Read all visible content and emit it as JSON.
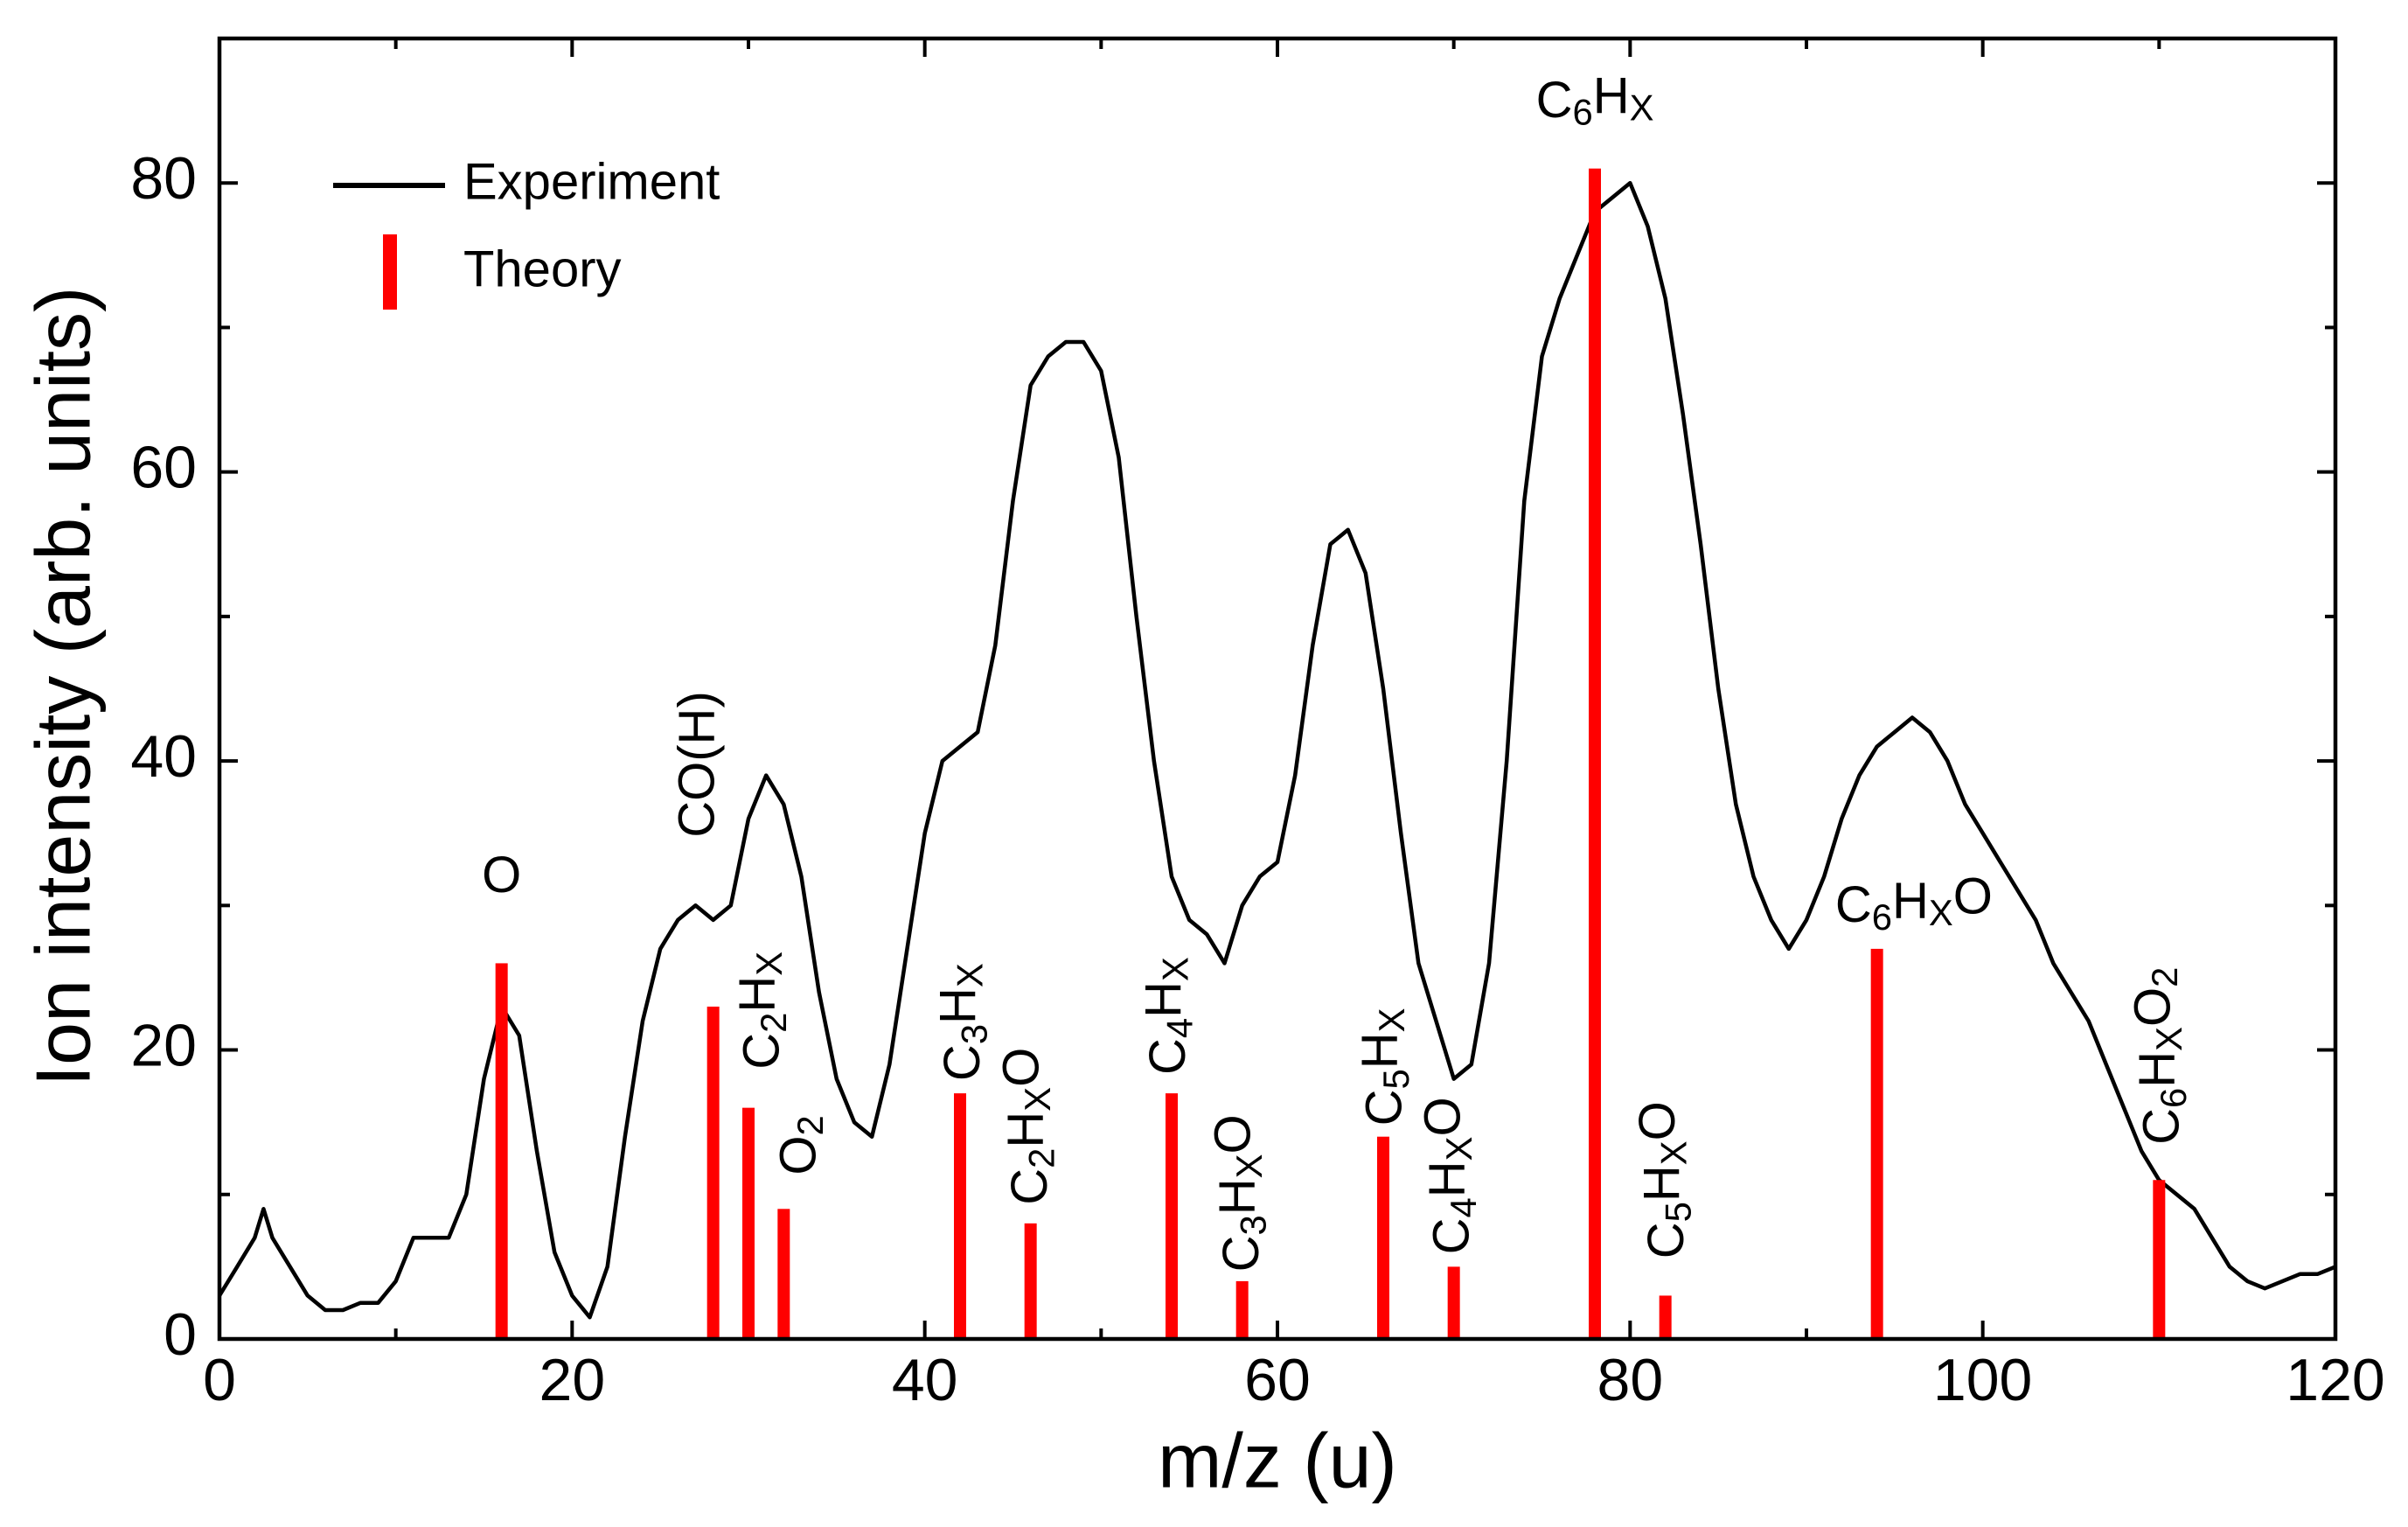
{
  "chart_data": {
    "type": "line",
    "xlabel": "m/z (u)",
    "ylabel": "Ion intensity (arb. units)",
    "xlim": [
      0,
      120
    ],
    "ylim": [
      0,
      90
    ],
    "xticks": [
      0,
      20,
      40,
      60,
      80,
      100,
      120
    ],
    "yticks": [
      0,
      20,
      40,
      60,
      80
    ],
    "xminorticks": [
      10,
      30,
      50,
      70,
      90,
      110
    ],
    "yminorticks": [
      10,
      30,
      50,
      70,
      90
    ],
    "legend": "upper-left",
    "series": [
      {
        "name": "Experiment",
        "type": "line",
        "color": "#000000",
        "x": [
          0,
          1,
          2,
          2.5,
          3,
          4,
          5,
          6,
          7,
          8,
          9,
          10,
          11,
          12,
          13,
          14,
          15,
          16,
          17,
          18,
          19,
          20,
          21,
          22,
          23,
          24,
          25,
          26,
          27,
          28,
          29,
          30,
          31,
          32,
          33,
          34,
          35,
          36,
          37,
          38,
          39,
          40,
          41,
          42,
          43,
          44,
          45,
          46,
          47,
          48,
          49,
          50,
          51,
          52,
          53,
          54,
          55,
          56,
          57,
          58,
          59,
          60,
          61,
          62,
          63,
          64,
          65,
          66,
          67,
          68,
          69,
          70,
          71,
          72,
          73,
          74,
          75,
          76,
          77,
          78,
          79,
          80,
          81,
          82,
          83,
          84,
          85,
          86,
          87,
          88,
          89,
          90,
          91,
          92,
          93,
          94,
          95,
          96,
          97,
          98,
          99,
          100,
          101,
          102,
          103,
          104,
          105,
          106,
          107,
          108,
          109,
          110,
          111,
          112,
          113,
          114,
          115,
          116,
          117,
          118,
          119,
          120
        ],
        "values": [
          3,
          5,
          7,
          9,
          7,
          5,
          3,
          2,
          2,
          2.5,
          2.5,
          4,
          7,
          7,
          7,
          10,
          18,
          23,
          21,
          13,
          6,
          3,
          1.5,
          5,
          14,
          22,
          27,
          29,
          30,
          29,
          30,
          36,
          39,
          37,
          32,
          24,
          18,
          15,
          14,
          19,
          27,
          35,
          40,
          41,
          42,
          48,
          58,
          66,
          68,
          69,
          69,
          67,
          61,
          50,
          40,
          32,
          29,
          28,
          26,
          30,
          32,
          33,
          39,
          48,
          55,
          56,
          53,
          45,
          35,
          26,
          22,
          18,
          19,
          26,
          40,
          58,
          68,
          72,
          75,
          78,
          79,
          80,
          77,
          72,
          64,
          55,
          45,
          37,
          32,
          29,
          27,
          29,
          32,
          36,
          39,
          41,
          42,
          43,
          42,
          40,
          37,
          35,
          33,
          31,
          29,
          26,
          24,
          22,
          19,
          16,
          13,
          11,
          10,
          9,
          7,
          5,
          4,
          3.5,
          4,
          4.5,
          4.5,
          5
        ]
      },
      {
        "name": "Theory",
        "type": "bar",
        "color": "#ff0000",
        "x": [
          16,
          28,
          30,
          32,
          42,
          46,
          54,
          58,
          66,
          70,
          78,
          82,
          94,
          110
        ],
        "values": [
          26,
          23,
          16,
          9,
          17,
          8,
          17,
          4,
          14,
          5,
          81,
          3,
          27,
          11
        ],
        "labels": [
          "O",
          "CO(H)",
          "C2HX",
          "O2",
          "C3HX",
          "C2HXO",
          "C4HX",
          "C3HXO",
          "C5HX",
          "C4HXO",
          "C6HX",
          "C5HXO",
          "C6HXO",
          "C6HXO2"
        ]
      }
    ]
  }
}
